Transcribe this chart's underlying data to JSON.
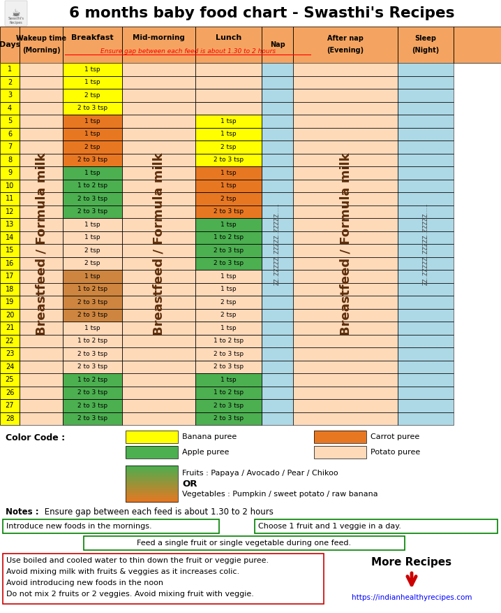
{
  "title": "6 months baby food chart - Swasthi's Recipes",
  "header_color": "#F4A460",
  "note_red": "Ensure gap between each feed is about 1.30 to 2 hours",
  "breakfast_data": [
    {
      "day": 1,
      "text": "1 tsp",
      "color": "#FFFF00"
    },
    {
      "day": 2,
      "text": "1 tsp",
      "color": "#FFFF00"
    },
    {
      "day": 3,
      "text": "2 tsp",
      "color": "#FFFF00"
    },
    {
      "day": 4,
      "text": "2 to 3 tsp",
      "color": "#FFFF00"
    },
    {
      "day": 5,
      "text": "1 tsp",
      "color": "#E87722"
    },
    {
      "day": 6,
      "text": "1 tsp",
      "color": "#E87722"
    },
    {
      "day": 7,
      "text": "2 tsp",
      "color": "#E87722"
    },
    {
      "day": 8,
      "text": "2 to 3 tsp",
      "color": "#E87722"
    },
    {
      "day": 9,
      "text": "1 tsp",
      "color": "#4CAF50"
    },
    {
      "day": 10,
      "text": "1 to 2 tsp",
      "color": "#4CAF50"
    },
    {
      "day": 11,
      "text": "2 to 3 tsp",
      "color": "#4CAF50"
    },
    {
      "day": 12,
      "text": "2 to 3 tsp",
      "color": "#4CAF50"
    },
    {
      "day": 13,
      "text": "1 tsp",
      "color": "#FFDAB9"
    },
    {
      "day": 14,
      "text": "1 tsp",
      "color": "#FFDAB9"
    },
    {
      "day": 15,
      "text": "2 tsp",
      "color": "#FFDAB9"
    },
    {
      "day": 16,
      "text": "2 tsp",
      "color": "#FFDAB9"
    },
    {
      "day": 17,
      "text": "1 tsp",
      "color": "#CD853F"
    },
    {
      "day": 18,
      "text": "1 to 2 tsp",
      "color": "#CD853F"
    },
    {
      "day": 19,
      "text": "2 to 3 tsp",
      "color": "#CD853F"
    },
    {
      "day": 20,
      "text": "2 to 3 tsp",
      "color": "#CD853F"
    },
    {
      "day": 21,
      "text": "1 tsp",
      "color": "#FFDAB9"
    },
    {
      "day": 22,
      "text": "1 to 2 tsp",
      "color": "#FFDAB9"
    },
    {
      "day": 23,
      "text": "2 to 3 tsp",
      "color": "#FFDAB9"
    },
    {
      "day": 24,
      "text": "2 to 3 tsp",
      "color": "#FFDAB9"
    },
    {
      "day": 25,
      "text": "1 to 2 tsp",
      "color": "#4CAF50"
    },
    {
      "day": 26,
      "text": "2 to 3 tsp",
      "color": "#4CAF50"
    },
    {
      "day": 27,
      "text": "2 to 3 tsp",
      "color": "#4CAF50"
    },
    {
      "day": 28,
      "text": "2 to 3 tsp",
      "color": "#4CAF50"
    }
  ],
  "lunch_data": [
    {
      "day": 1,
      "text": "",
      "color": "#FFDAB9"
    },
    {
      "day": 2,
      "text": "",
      "color": "#FFDAB9"
    },
    {
      "day": 3,
      "text": "",
      "color": "#FFDAB9"
    },
    {
      "day": 4,
      "text": "",
      "color": "#FFDAB9"
    },
    {
      "day": 5,
      "text": "1 tsp",
      "color": "#FFFF00"
    },
    {
      "day": 6,
      "text": "1 tsp",
      "color": "#FFFF00"
    },
    {
      "day": 7,
      "text": "2 tsp",
      "color": "#FFFF00"
    },
    {
      "day": 8,
      "text": "2 to 3 tsp",
      "color": "#FFFF00"
    },
    {
      "day": 9,
      "text": "1 tsp",
      "color": "#E87722"
    },
    {
      "day": 10,
      "text": "1 tsp",
      "color": "#E87722"
    },
    {
      "day": 11,
      "text": "2 tsp",
      "color": "#E87722"
    },
    {
      "day": 12,
      "text": "2 to 3 tsp",
      "color": "#E87722"
    },
    {
      "day": 13,
      "text": "1 tsp",
      "color": "#4CAF50"
    },
    {
      "day": 14,
      "text": "1 to 2 tsp",
      "color": "#4CAF50"
    },
    {
      "day": 15,
      "text": "2 to 3 tsp",
      "color": "#4CAF50"
    },
    {
      "day": 16,
      "text": "2 to 3 tsp",
      "color": "#4CAF50"
    },
    {
      "day": 17,
      "text": "1 tsp",
      "color": "#FFDAB9"
    },
    {
      "day": 18,
      "text": "1 tsp",
      "color": "#FFDAB9"
    },
    {
      "day": 19,
      "text": "2 tsp",
      "color": "#FFDAB9"
    },
    {
      "day": 20,
      "text": "2 tsp",
      "color": "#FFDAB9"
    },
    {
      "day": 21,
      "text": "1 tsp",
      "color": "#FFDAB9"
    },
    {
      "day": 22,
      "text": "1 to 2 tsp",
      "color": "#FFDAB9"
    },
    {
      "day": 23,
      "text": "2 to 3 tsp",
      "color": "#FFDAB9"
    },
    {
      "day": 24,
      "text": "2 to 3 tsp",
      "color": "#FFDAB9"
    },
    {
      "day": 25,
      "text": "1 tsp",
      "color": "#4CAF50"
    },
    {
      "day": 26,
      "text": "1 to 2 tsp",
      "color": "#4CAF50"
    },
    {
      "day": 27,
      "text": "2 to 3 tsp",
      "color": "#4CAF50"
    },
    {
      "day": 28,
      "text": "2 to 3 tsp",
      "color": "#4CAF50"
    }
  ],
  "color_code": {
    "banana": "#FFFF00",
    "apple": "#4CAF50",
    "carrot": "#E87722",
    "potato": "#FFDAB9",
    "gradient_label1": "Fruits : Papaya / Avocado / Pear / Chikoo",
    "gradient_label2": "OR",
    "gradient_label3": "Vegetables : Pumpkin / sweet potato / raw banana"
  },
  "notes_line": "Notes : Ensure gap between each feed is about 1.30 to 2 hours",
  "note_boxes": [
    "Introduce new foods in the mornings.",
    "Choose 1 fruit and 1 veggie in a day.",
    "Feed a single fruit or single vegetable during one feed."
  ],
  "warning_lines": [
    "Use boiled and cooled water to thin down the fruit or veggie puree.",
    "Avoid mixing milk with fruits & veggies as it increases colic.",
    "Avoid introducing new foods in the noon",
    "Do not mix 2 fruits or 2 veggies. Avoid mixing fruit with veggie."
  ],
  "more_recipes_url": "https://indianhealthyrecipes.com"
}
